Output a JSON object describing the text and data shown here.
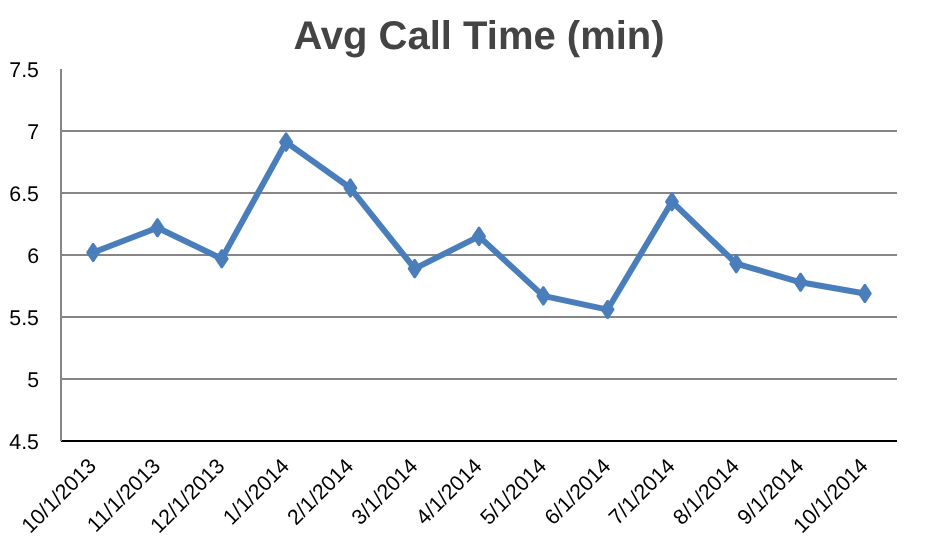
{
  "chart_data": {
    "type": "line",
    "title": "Avg Call Time (min)",
    "categories": [
      "10/1/2013",
      "11/1/2013",
      "12/1/2013",
      "1/1/2014",
      "2/1/2014",
      "3/1/2014",
      "4/1/2014",
      "5/1/2014",
      "6/1/2014",
      "7/1/2014",
      "8/1/2014",
      "9/1/2014",
      "10/1/2014"
    ],
    "series": [
      {
        "color": "#4a7ebb",
        "values": [
          6.02,
          6.22,
          5.97,
          6.91,
          6.54,
          5.89,
          6.15,
          5.67,
          5.56,
          6.43,
          5.93,
          5.78,
          5.69
        ]
      }
    ],
    "ylim": [
      4.5,
      7.5
    ],
    "yticks": [
      4.5,
      5,
      5.5,
      6,
      6.5,
      7,
      7.5
    ],
    "grid": "y",
    "marker": "diamond",
    "line_style": "solid"
  }
}
